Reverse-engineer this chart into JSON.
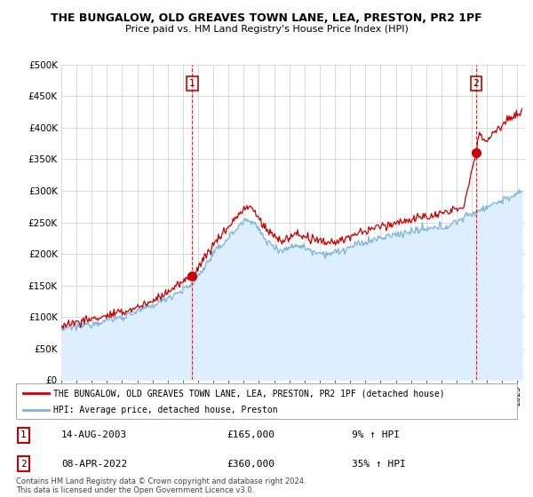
{
  "title1": "THE BUNGALOW, OLD GREAVES TOWN LANE, LEA, PRESTON, PR2 1PF",
  "title2": "Price paid vs. HM Land Registry's House Price Index (HPI)",
  "ylim": [
    0,
    500000
  ],
  "yticks": [
    0,
    50000,
    100000,
    150000,
    200000,
    250000,
    300000,
    350000,
    400000,
    450000,
    500000
  ],
  "ytick_labels": [
    "£0",
    "£50K",
    "£100K",
    "£150K",
    "£200K",
    "£250K",
    "£300K",
    "£350K",
    "£400K",
    "£450K",
    "£500K"
  ],
  "property_color": "#cc0000",
  "hpi_color": "#7fb3d9",
  "hpi_fill_color": "#ddeeff",
  "marker_color": "#cc0000",
  "vline_color": "#cc0000",
  "sale1_year": 2003.618,
  "sale1_price": 165000,
  "sale2_year": 2022.274,
  "sale2_price": 360000,
  "legend_property": "THE BUNGALOW, OLD GREAVES TOWN LANE, LEA, PRESTON, PR2 1PF (detached house)",
  "legend_hpi": "HPI: Average price, detached house, Preston",
  "annotation1_label": "1",
  "annotation1_date": "14-AUG-2003",
  "annotation1_price": "£165,000",
  "annotation1_hpi": "9% ↑ HPI",
  "annotation2_label": "2",
  "annotation2_date": "08-APR-2022",
  "annotation2_price": "£360,000",
  "annotation2_hpi": "35% ↑ HPI",
  "footer": "Contains HM Land Registry data © Crown copyright and database right 2024.\nThis data is licensed under the Open Government Licence v3.0.",
  "background_color": "#ffffff",
  "grid_color": "#cccccc"
}
